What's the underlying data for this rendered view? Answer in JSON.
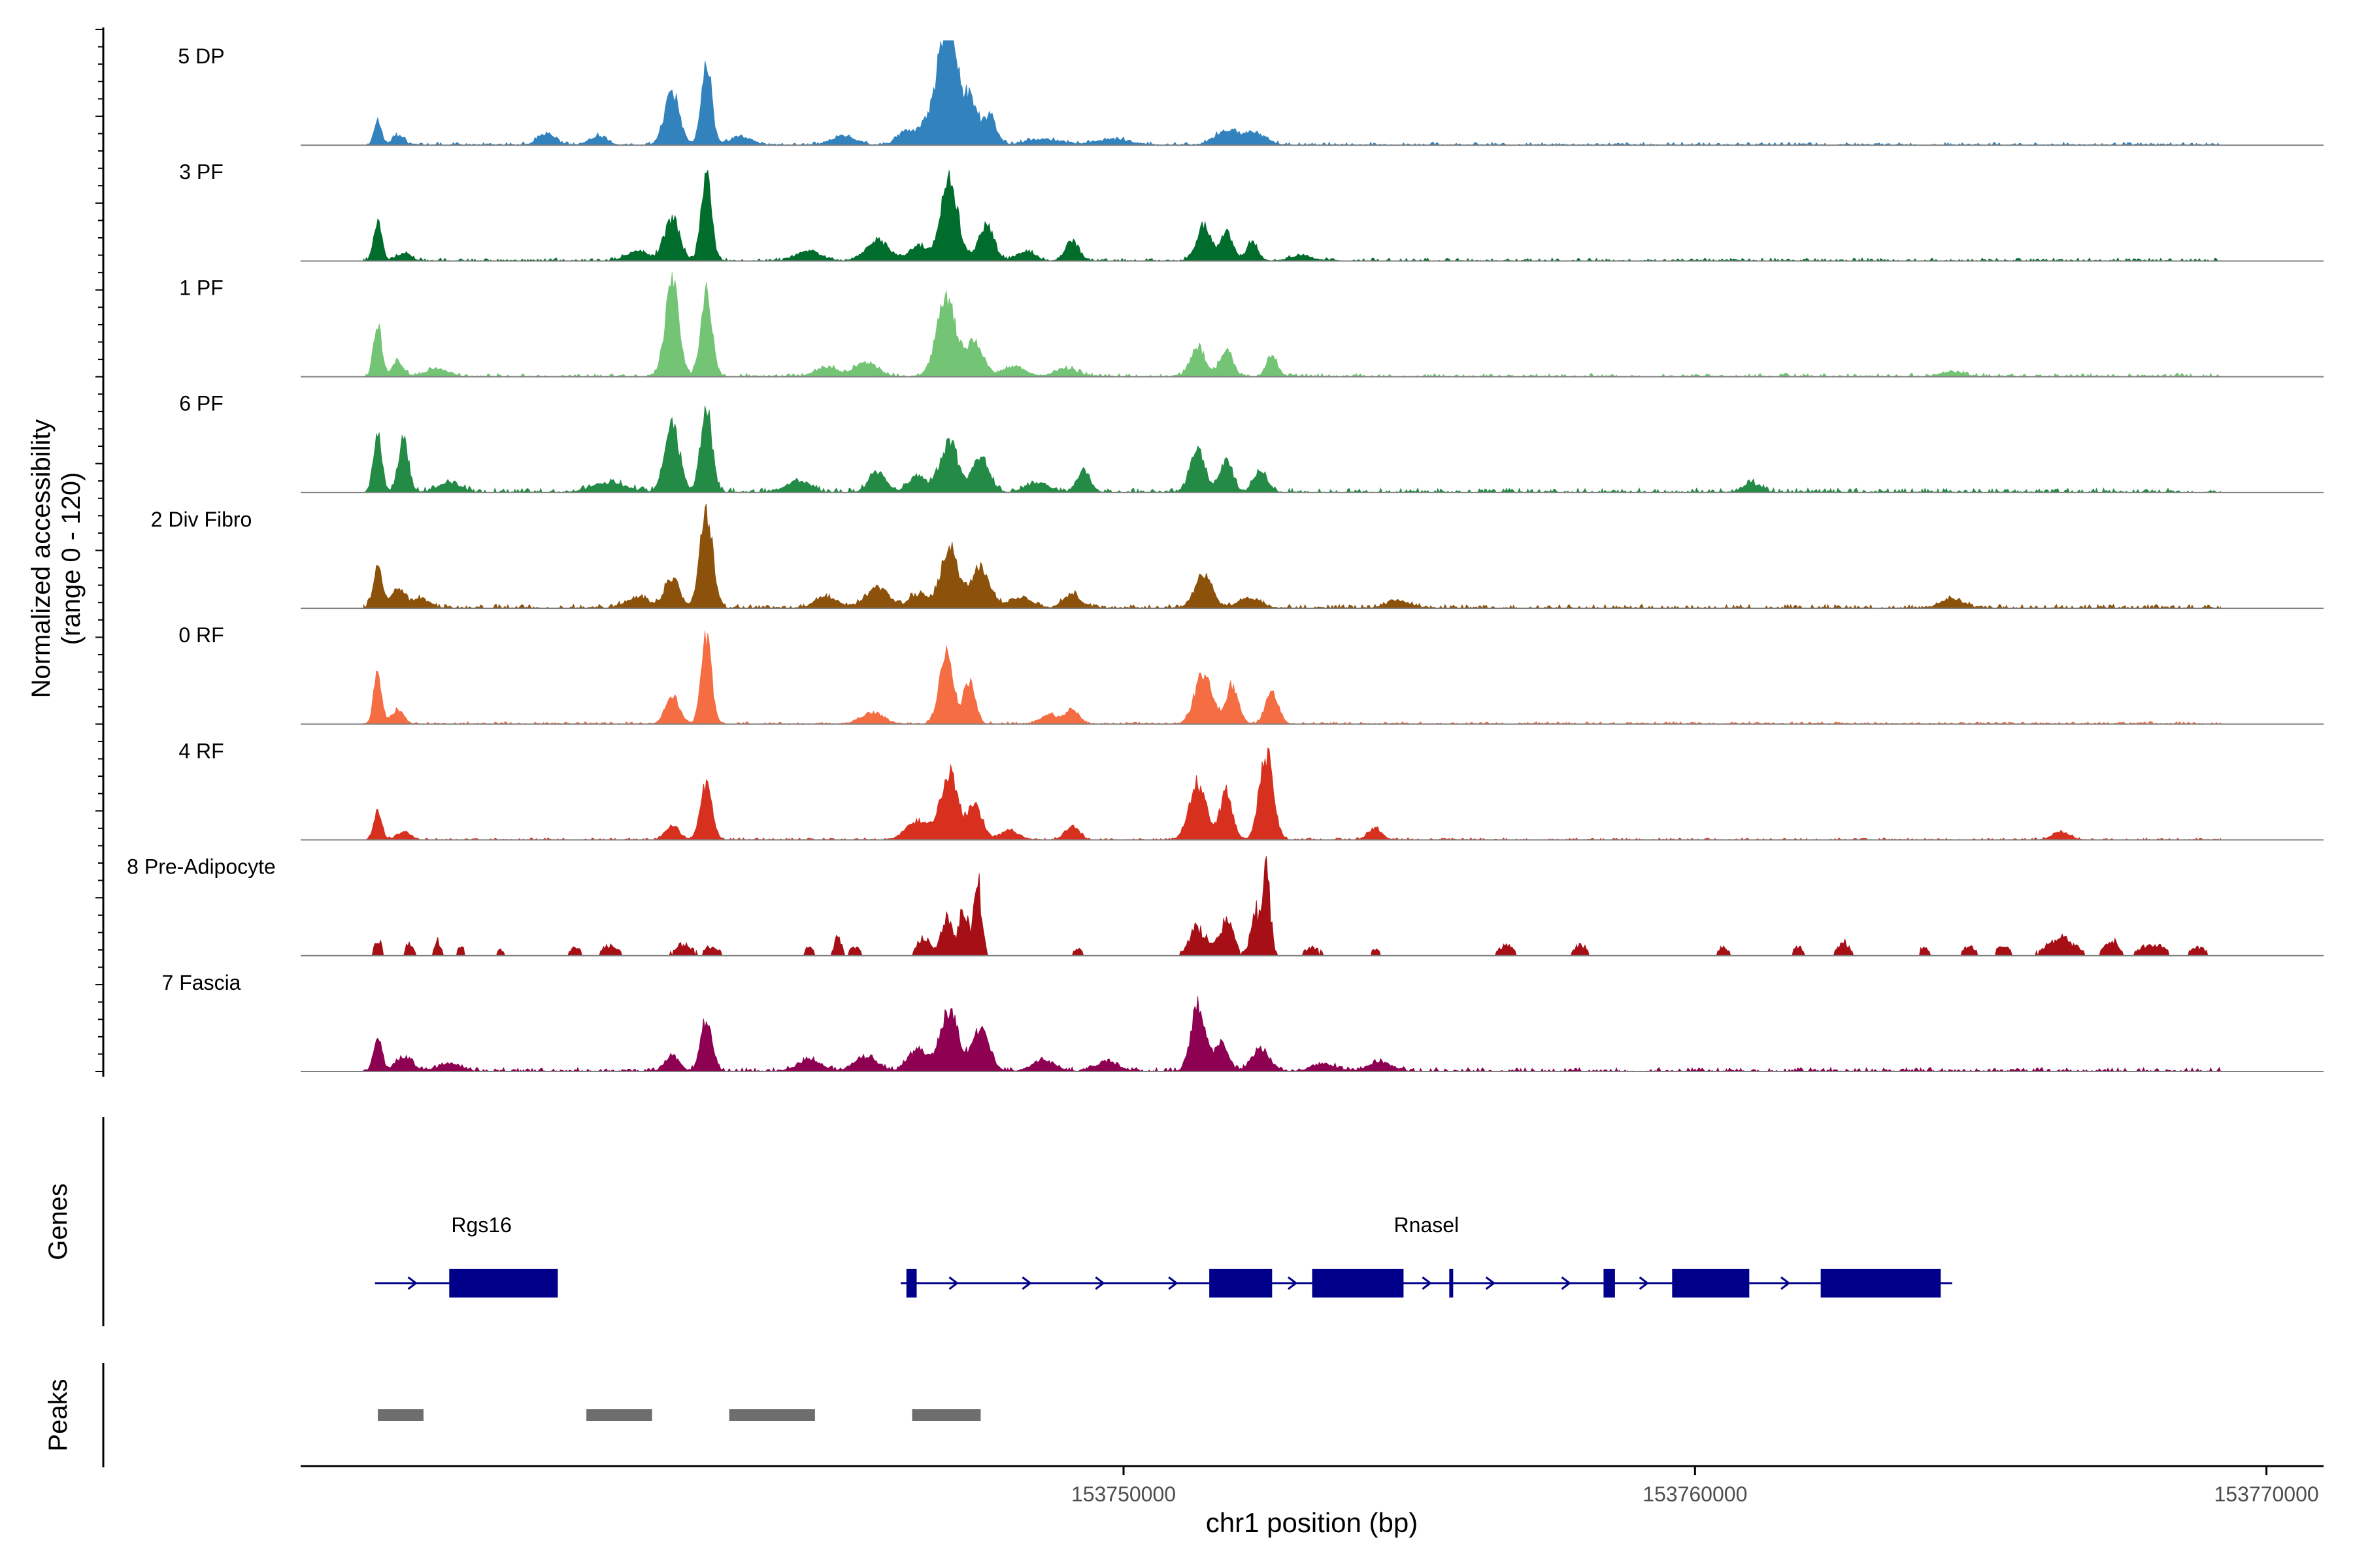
{
  "chart_data": {
    "type": "area",
    "title": "",
    "xlabel": "chr1 position (bp)",
    "ylabel_line1": "Normalized accessibility",
    "ylabel_line2": "(range 0 - 120)",
    "xlim": [
      153735600,
      153771000
    ],
    "ylim": [
      0,
      120
    ],
    "x_ticks": [
      {
        "value": 153750000,
        "label": "153750000"
      },
      {
        "value": 153760000,
        "label": "153760000"
      },
      {
        "value": 153770000,
        "label": "153770000"
      }
    ],
    "tracks_end": 153769200,
    "series": [
      {
        "name": "5 DP",
        "color": "#3182BD",
        "peaks": [
          [
            153736950,
            0.28,
            60
          ],
          [
            153737300,
            0.1,
            100
          ],
          [
            153739900,
            0.12,
            150
          ],
          [
            153740800,
            0.09,
            150
          ],
          [
            153742100,
            0.55,
            130
          ],
          [
            153742700,
            0.92,
            90
          ],
          [
            153743300,
            0.08,
            200
          ],
          [
            153745100,
            0.1,
            200
          ],
          [
            153746200,
            0.14,
            160
          ],
          [
            153746800,
            0.55,
            220
          ],
          [
            153746950,
            0.98,
            130
          ],
          [
            153747300,
            0.45,
            130
          ],
          [
            153747650,
            0.3,
            120
          ],
          [
            153748600,
            0.06,
            300
          ],
          [
            153749800,
            0.06,
            300
          ],
          [
            153751800,
            0.16,
            200
          ],
          [
            153752300,
            0.12,
            200
          ]
        ],
        "noise": 0.03
      },
      {
        "name": "3 PF",
        "color": "#006D2C",
        "peaks": [
          [
            153736950,
            0.4,
            70
          ],
          [
            153737400,
            0.08,
            120
          ],
          [
            153741500,
            0.1,
            200
          ],
          [
            153742100,
            0.45,
            130
          ],
          [
            153742700,
            0.92,
            90
          ],
          [
            153744500,
            0.1,
            200
          ],
          [
            153745700,
            0.22,
            200
          ],
          [
            153746400,
            0.16,
            150
          ],
          [
            153746950,
            0.85,
            150
          ],
          [
            153747600,
            0.4,
            130
          ],
          [
            153748300,
            0.1,
            150
          ],
          [
            153749100,
            0.2,
            120
          ],
          [
            153751400,
            0.35,
            130
          ],
          [
            153751800,
            0.3,
            110
          ],
          [
            153752250,
            0.2,
            100
          ],
          [
            153753100,
            0.05,
            200
          ]
        ],
        "noise": 0.03
      },
      {
        "name": "1 PF",
        "color": "#74C476",
        "peaks": [
          [
            153736950,
            0.55,
            70
          ],
          [
            153737300,
            0.15,
            100
          ],
          [
            153738000,
            0.08,
            200
          ],
          [
            153742100,
            1.0,
            120
          ],
          [
            153742700,
            0.88,
            100
          ],
          [
            153744800,
            0.1,
            200
          ],
          [
            153745500,
            0.15,
            200
          ],
          [
            153746900,
            0.8,
            170
          ],
          [
            153747400,
            0.35,
            150
          ],
          [
            153748100,
            0.1,
            200
          ],
          [
            153749000,
            0.08,
            200
          ],
          [
            153751300,
            0.32,
            130
          ],
          [
            153751800,
            0.28,
            110
          ],
          [
            153752600,
            0.2,
            100
          ],
          [
            153764500,
            0.05,
            200
          ]
        ],
        "noise": 0.035
      },
      {
        "name": "6 PF",
        "color": "#238B45",
        "peaks": [
          [
            153736950,
            0.65,
            70
          ],
          [
            153737400,
            0.55,
            90
          ],
          [
            153738200,
            0.1,
            200
          ],
          [
            153741000,
            0.1,
            300
          ],
          [
            153742100,
            0.7,
            130
          ],
          [
            153742700,
            0.88,
            100
          ],
          [
            153744300,
            0.12,
            200
          ],
          [
            153745700,
            0.22,
            150
          ],
          [
            153746400,
            0.18,
            150
          ],
          [
            153746950,
            0.55,
            150
          ],
          [
            153747500,
            0.35,
            150
          ],
          [
            153748500,
            0.1,
            200
          ],
          [
            153749300,
            0.22,
            120
          ],
          [
            153751300,
            0.45,
            130
          ],
          [
            153751800,
            0.35,
            110
          ],
          [
            153752400,
            0.22,
            120
          ],
          [
            153761000,
            0.1,
            150
          ]
        ],
        "noise": 0.045
      },
      {
        "name": "2 Div Fibro",
        "color": "#8C510A",
        "peaks": [
          [
            153736950,
            0.45,
            80
          ],
          [
            153737300,
            0.2,
            120
          ],
          [
            153737700,
            0.1,
            150
          ],
          [
            153741500,
            0.12,
            200
          ],
          [
            153742100,
            0.32,
            130
          ],
          [
            153742700,
            1.0,
            110
          ],
          [
            153744800,
            0.12,
            200
          ],
          [
            153745700,
            0.22,
            200
          ],
          [
            153746400,
            0.15,
            150
          ],
          [
            153746950,
            0.65,
            150
          ],
          [
            153747500,
            0.45,
            160
          ],
          [
            153748200,
            0.12,
            200
          ],
          [
            153749100,
            0.15,
            150
          ],
          [
            153751400,
            0.35,
            150
          ],
          [
            153752200,
            0.1,
            200
          ],
          [
            153754800,
            0.08,
            200
          ],
          [
            153764500,
            0.1,
            200
          ]
        ],
        "noise": 0.04
      },
      {
        "name": "0 RF",
        "color": "#F46D43",
        "peaks": [
          [
            153736950,
            0.55,
            70
          ],
          [
            153737300,
            0.15,
            100
          ],
          [
            153742100,
            0.3,
            120
          ],
          [
            153742700,
            0.9,
            90
          ],
          [
            153745600,
            0.12,
            200
          ],
          [
            153746900,
            0.75,
            120
          ],
          [
            153747300,
            0.45,
            100
          ],
          [
            153748700,
            0.1,
            150
          ],
          [
            153749100,
            0.15,
            120
          ],
          [
            153751400,
            0.55,
            150
          ],
          [
            153751900,
            0.4,
            110
          ],
          [
            153752600,
            0.35,
            110
          ]
        ],
        "noise": 0.025
      },
      {
        "name": "4 RF",
        "color": "#D7301F",
        "peaks": [
          [
            153736950,
            0.3,
            70
          ],
          [
            153737400,
            0.08,
            120
          ],
          [
            153742100,
            0.15,
            120
          ],
          [
            153742700,
            0.62,
            100
          ],
          [
            153746400,
            0.2,
            200
          ],
          [
            153746950,
            0.7,
            150
          ],
          [
            153747400,
            0.35,
            130
          ],
          [
            153748000,
            0.1,
            150
          ],
          [
            153749100,
            0.15,
            120
          ],
          [
            153751300,
            0.6,
            150
          ],
          [
            153751800,
            0.5,
            110
          ],
          [
            153752500,
            0.92,
            120
          ],
          [
            153754400,
            0.12,
            120
          ],
          [
            153766400,
            0.08,
            150
          ]
        ],
        "noise": 0.02
      },
      {
        "name": "8 Pre-Adipocyte",
        "color": "#A50F15",
        "peaks": [
          [
            153736950,
            0.22,
            60
          ],
          [
            153737500,
            0.18,
            60
          ],
          [
            153738000,
            0.2,
            50
          ],
          [
            153738400,
            0.12,
            60
          ],
          [
            153739100,
            0.08,
            60
          ],
          [
            153740400,
            0.1,
            100
          ],
          [
            153741000,
            0.12,
            150
          ],
          [
            153742300,
            0.15,
            150
          ],
          [
            153742800,
            0.12,
            120
          ],
          [
            153744500,
            0.12,
            80
          ],
          [
            153745000,
            0.25,
            60
          ],
          [
            153745300,
            0.12,
            80
          ],
          [
            153746500,
            0.25,
            100
          ],
          [
            153746900,
            0.45,
            100
          ],
          [
            153747200,
            0.6,
            80
          ],
          [
            153747450,
            0.95,
            70
          ],
          [
            153749200,
            0.08,
            80
          ],
          [
            153751300,
            0.35,
            150
          ],
          [
            153751800,
            0.45,
            120
          ],
          [
            153752300,
            0.55,
            80
          ],
          [
            153752500,
            0.98,
            70
          ],
          [
            153753300,
            0.1,
            150
          ],
          [
            153754400,
            0.08,
            80
          ],
          [
            153756700,
            0.15,
            120
          ],
          [
            153758000,
            0.15,
            100
          ],
          [
            153760500,
            0.12,
            80
          ],
          [
            153761800,
            0.12,
            80
          ],
          [
            153762600,
            0.18,
            100
          ],
          [
            153764000,
            0.1,
            80
          ],
          [
            153764800,
            0.12,
            120
          ],
          [
            153765400,
            0.15,
            100
          ],
          [
            153766400,
            0.22,
            250
          ],
          [
            153767300,
            0.2,
            120
          ],
          [
            153768000,
            0.15,
            200
          ],
          [
            153768800,
            0.1,
            150
          ]
        ],
        "noise": 0.015,
        "sparse": true
      },
      {
        "name": "7 Fascia",
        "color": "#8E0152",
        "peaks": [
          [
            153736950,
            0.4,
            70
          ],
          [
            153737400,
            0.15,
            150
          ],
          [
            153738200,
            0.08,
            200
          ],
          [
            153742100,
            0.18,
            120
          ],
          [
            153742700,
            0.55,
            100
          ],
          [
            153744500,
            0.12,
            200
          ],
          [
            153745500,
            0.15,
            200
          ],
          [
            153746400,
            0.25,
            160
          ],
          [
            153746950,
            0.65,
            150
          ],
          [
            153747500,
            0.45,
            150
          ],
          [
            153748600,
            0.12,
            200
          ],
          [
            153749700,
            0.1,
            200
          ],
          [
            153751300,
            0.7,
            120
          ],
          [
            153751700,
            0.3,
            120
          ],
          [
            153752400,
            0.25,
            150
          ],
          [
            153753500,
            0.08,
            200
          ],
          [
            153754500,
            0.1,
            200
          ]
        ],
        "noise": 0.04
      }
    ],
    "genes": [
      {
        "name": "Rgs16",
        "start": 153736900,
        "end": 153739600,
        "strand": "+",
        "exons": [
          [
            153738200,
            153740100
          ]
        ]
      },
      {
        "name": "Rnasel",
        "start": 153746100,
        "end": 153764500,
        "strand": "+",
        "exons": [
          [
            153746200,
            153746380
          ],
          [
            153751500,
            153752600
          ],
          [
            153753300,
            153754900
          ],
          [
            153755700,
            153755750
          ],
          [
            153758400,
            153758600
          ],
          [
            153759600,
            153760950
          ],
          [
            153762200,
            153764300
          ]
        ]
      }
    ],
    "peaks": [
      {
        "start": 153736950,
        "end": 153737750
      },
      {
        "start": 153740600,
        "end": 153741750
      },
      {
        "start": 153743100,
        "end": 153744600
      },
      {
        "start": 153746300,
        "end": 153747500
      }
    ],
    "panel_labels": [
      "Genes",
      "Peaks"
    ]
  },
  "colors": {
    "gene": "#00008B",
    "peak": "#6E6E6E",
    "baseline": "#808080"
  }
}
